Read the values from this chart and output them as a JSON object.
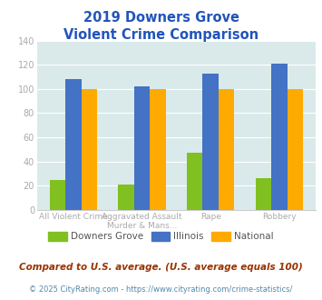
{
  "title_line1": "2019 Downers Grove",
  "title_line2": "Violent Crime Comparison",
  "cat_labels": [
    "All Violent Crime",
    "Aggravated Assault\nMurder & Mans...",
    "Rape",
    "Robbery"
  ],
  "downers_grove": [
    25,
    21,
    47,
    26
  ],
  "illinois": [
    108,
    102,
    113,
    121
  ],
  "national": [
    100,
    100,
    100,
    100
  ],
  "color_dg": "#80c020",
  "color_il": "#4472c4",
  "color_nat": "#ffaa00",
  "ylim": [
    0,
    140
  ],
  "yticks": [
    0,
    20,
    40,
    60,
    80,
    100,
    120,
    140
  ],
  "bg_color": "#daeaea",
  "footnote1": "Compared to U.S. average. (U.S. average equals 100)",
  "footnote2": "© 2025 CityRating.com - https://www.cityrating.com/crime-statistics/",
  "title_color": "#2255bb",
  "footnote1_color": "#993300",
  "footnote2_color": "#5588aa",
  "legend_labels": [
    "Downers Grove",
    "Illinois",
    "National"
  ]
}
